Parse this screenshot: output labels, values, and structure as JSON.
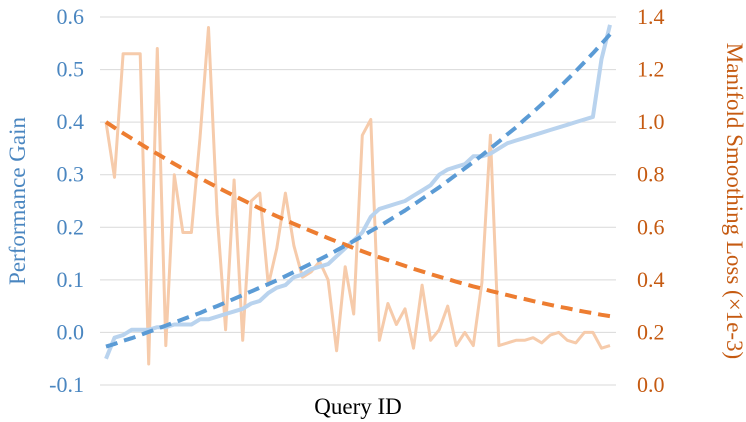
{
  "chart_data": {
    "type": "line",
    "title": "",
    "xlabel": "Query ID",
    "ylabel": "Performance Gain",
    "ylabel_right": "Manifold Smoothing Loss (×1e-3)",
    "ylim": [
      -0.1,
      0.6
    ],
    "ylim_right": [
      0.0,
      1.4
    ],
    "yticks": [
      "-0.1",
      "0.0",
      "0.1",
      "0.2",
      "0.3",
      "0.4",
      "0.5",
      "0.6"
    ],
    "yticks_right": [
      "0.0",
      "0.2",
      "0.4",
      "0.6",
      "0.8",
      "1.0",
      "1.2",
      "1.4"
    ],
    "grid": true,
    "legend": "none",
    "colors": {
      "left_axis": "#4a86c0",
      "right_axis": "#c55a11",
      "gain_line": "#b9d3ee",
      "gain_trend": "#5b9bd5",
      "loss_line": "#f6cbab",
      "loss_trend": "#ed7d31",
      "grid": "#d9d9d9"
    },
    "x": [
      1,
      2,
      3,
      4,
      5,
      6,
      7,
      8,
      9,
      10,
      11,
      12,
      13,
      14,
      15,
      16,
      17,
      18,
      19,
      20,
      21,
      22,
      23,
      24,
      25,
      26,
      27,
      28,
      29,
      30,
      31,
      32,
      33,
      34,
      35,
      36,
      37,
      38,
      39,
      40,
      41,
      42,
      43,
      44,
      45,
      46,
      47,
      48,
      49,
      50,
      51,
      52,
      53,
      54,
      55,
      56,
      57,
      58,
      59,
      60
    ],
    "series": [
      {
        "axis": "left",
        "style": "raw",
        "values": [
          -0.05,
          -0.01,
          -0.005,
          0.005,
          0.005,
          0.005,
          0.01,
          0.01,
          0.015,
          0.015,
          0.015,
          0.025,
          0.025,
          0.03,
          0.035,
          0.04,
          0.045,
          0.055,
          0.06,
          0.075,
          0.085,
          0.09,
          0.105,
          0.11,
          0.12,
          0.125,
          0.13,
          0.145,
          0.16,
          0.175,
          0.19,
          0.22,
          0.235,
          0.24,
          0.245,
          0.25,
          0.26,
          0.27,
          0.28,
          0.3,
          0.31,
          0.315,
          0.32,
          0.335,
          0.335,
          0.34,
          0.35,
          0.36,
          0.365,
          0.37,
          0.375,
          0.38,
          0.385,
          0.39,
          0.395,
          0.4,
          0.405,
          0.41,
          0.52,
          0.585
        ]
      },
      {
        "axis": "left",
        "style": "trend",
        "values": [
          -0.027,
          -0.022,
          -0.016,
          -0.011,
          -0.005,
          0.001,
          0.007,
          0.013,
          0.019,
          0.025,
          0.031,
          0.037,
          0.044,
          0.05,
          0.057,
          0.064,
          0.071,
          0.078,
          0.085,
          0.092,
          0.099,
          0.107,
          0.115,
          0.123,
          0.131,
          0.139,
          0.147,
          0.156,
          0.165,
          0.174,
          0.183,
          0.193,
          0.202,
          0.212,
          0.222,
          0.232,
          0.243,
          0.254,
          0.265,
          0.276,
          0.288,
          0.3,
          0.312,
          0.324,
          0.337,
          0.35,
          0.363,
          0.377,
          0.39,
          0.405,
          0.419,
          0.434,
          0.449,
          0.465,
          0.481,
          0.497,
          0.514,
          0.531,
          0.549,
          0.567
        ]
      },
      {
        "axis": "right",
        "style": "raw",
        "values": [
          1.0,
          0.79,
          1.26,
          1.26,
          1.26,
          0.08,
          1.28,
          0.15,
          0.8,
          0.58,
          0.58,
          0.94,
          1.36,
          0.65,
          0.21,
          0.78,
          0.17,
          0.7,
          0.73,
          0.38,
          0.52,
          0.73,
          0.53,
          0.41,
          0.43,
          0.47,
          0.4,
          0.13,
          0.45,
          0.27,
          0.95,
          1.01,
          0.17,
          0.31,
          0.23,
          0.29,
          0.14,
          0.38,
          0.17,
          0.21,
          0.3,
          0.15,
          0.2,
          0.15,
          0.39,
          0.95,
          0.15,
          0.16,
          0.17,
          0.17,
          0.18,
          0.16,
          0.19,
          0.2,
          0.17,
          0.16,
          0.2,
          0.2,
          0.14,
          0.15
        ]
      },
      {
        "axis": "right",
        "style": "trend",
        "values": [
          1.0,
          0.979,
          0.958,
          0.938,
          0.918,
          0.898,
          0.879,
          0.86,
          0.841,
          0.823,
          0.805,
          0.787,
          0.77,
          0.753,
          0.736,
          0.72,
          0.704,
          0.688,
          0.672,
          0.657,
          0.642,
          0.628,
          0.613,
          0.599,
          0.586,
          0.572,
          0.559,
          0.546,
          0.534,
          0.521,
          0.509,
          0.497,
          0.486,
          0.475,
          0.464,
          0.453,
          0.442,
          0.432,
          0.422,
          0.412,
          0.403,
          0.393,
          0.384,
          0.375,
          0.367,
          0.358,
          0.35,
          0.342,
          0.334,
          0.327,
          0.319,
          0.312,
          0.305,
          0.298,
          0.292,
          0.285,
          0.279,
          0.273,
          0.267,
          0.262
        ]
      }
    ]
  }
}
